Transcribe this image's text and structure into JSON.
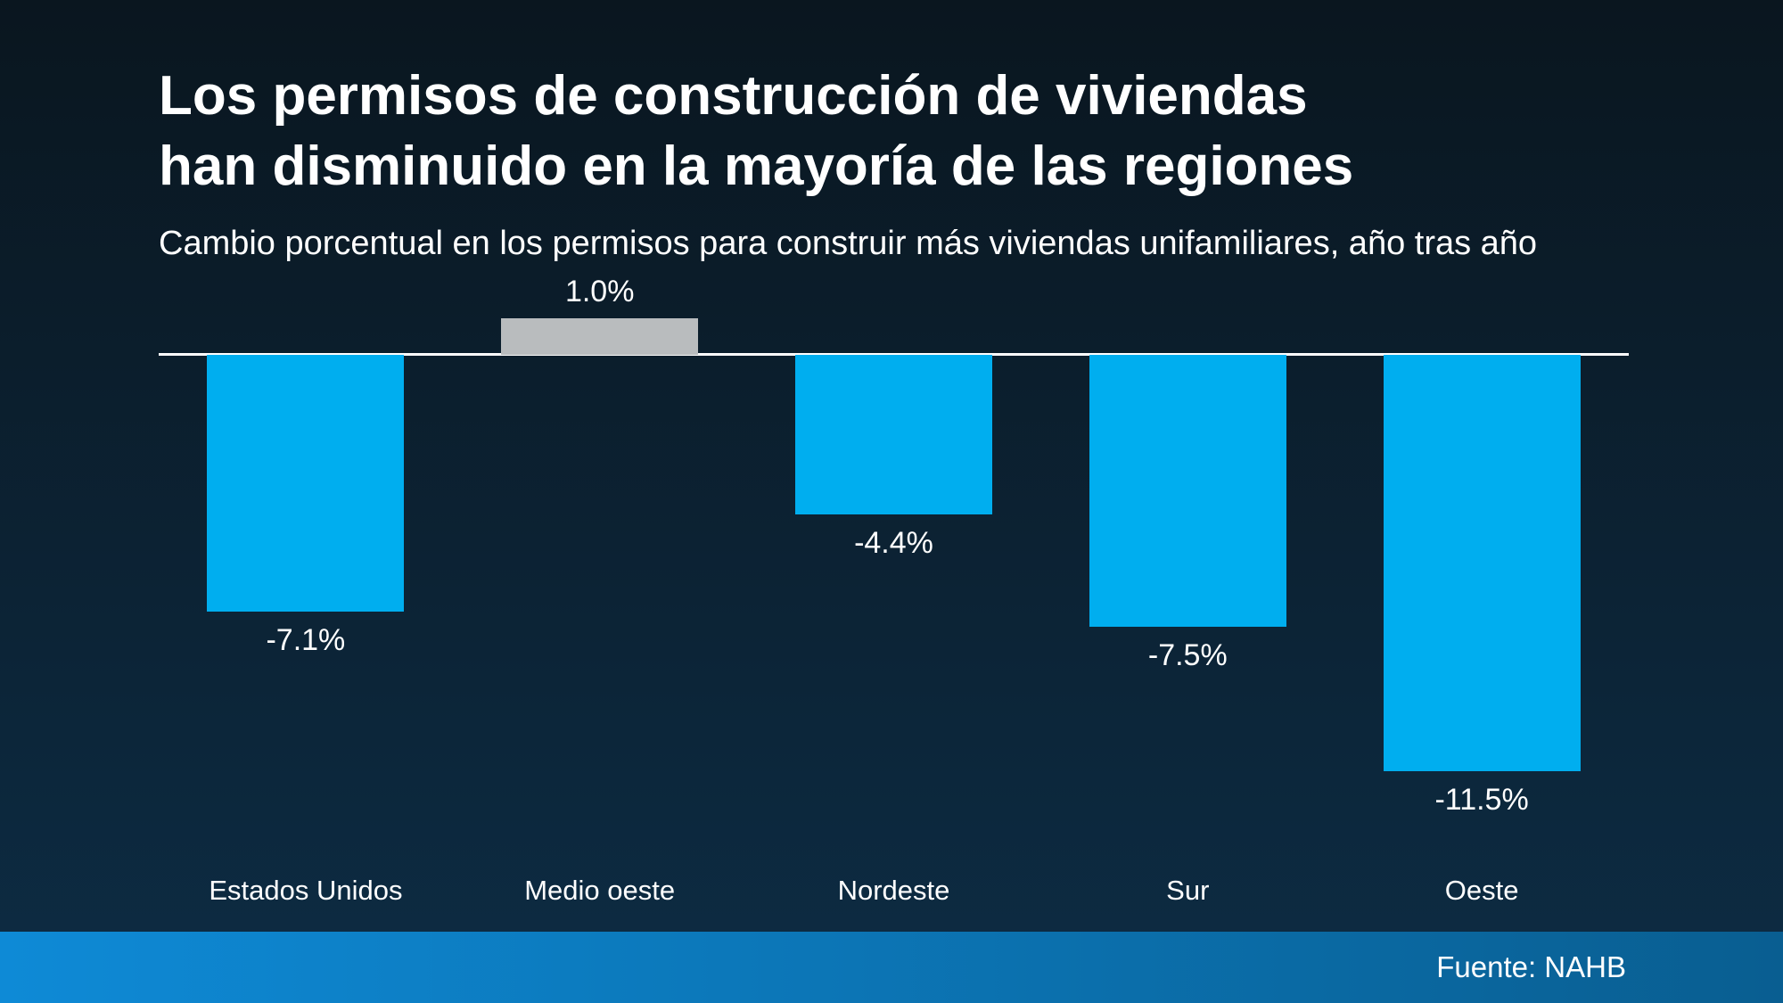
{
  "slide": {
    "title_line1": "Los permisos de construcción de viviendas",
    "title_line2": "han disminuido en la mayoría de las regiones",
    "subtitle": "Cambio porcentual en los permisos para construir más viviendas unifamiliares, año tras año",
    "source": "Fuente: NAHB"
  },
  "colors": {
    "background_top": "#0a161f",
    "background_bottom": "#0d2c44",
    "footer_left": "#0e8ad6",
    "footer_right": "#095e91",
    "baseline": "#ffffff",
    "bar_blue": "#00aeef",
    "bar_gray": "#b9bcbe"
  },
  "chart_data": {
    "type": "bar",
    "title": "Los permisos de construcción de viviendas han disminuido en la mayoría de las regiones",
    "subtitle": "Cambio porcentual en los permisos para construir más viviendas unifamiliares, año tras año",
    "categories": [
      "Estados Unidos",
      "Medio oeste",
      "Nordeste",
      "Sur",
      "Oeste"
    ],
    "values": [
      -7.1,
      1.0,
      -4.4,
      -7.5,
      -11.5
    ],
    "value_labels": [
      "-7.1%",
      "1.0%",
      "-4.4%",
      "-7.5%",
      "-11.5%"
    ],
    "bar_colors": [
      "#00aeef",
      "#b9bcbe",
      "#00aeef",
      "#00aeef",
      "#00aeef"
    ],
    "xlabel": "",
    "ylabel": "",
    "ylim": [
      -12,
      2
    ],
    "baseline": 0,
    "grid": false,
    "legend": "none",
    "source": "Fuente: NAHB"
  }
}
